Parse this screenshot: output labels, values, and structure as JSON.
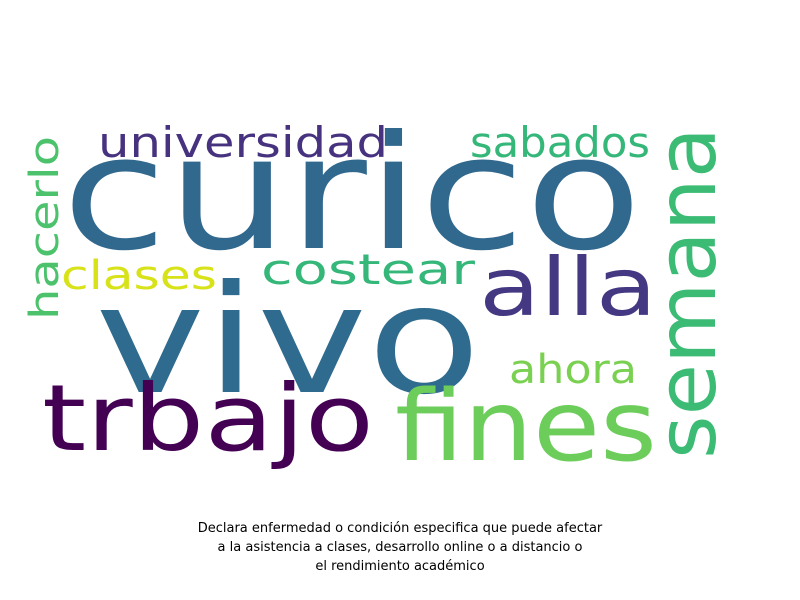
{
  "words": [
    {
      "text": "curico",
      "color": "#31688e"
    },
    {
      "text": "vivo",
      "color": "#2f6b8e"
    },
    {
      "text": "trbajo",
      "color": "#440154"
    },
    {
      "text": "fines",
      "color": "#6ccd5a"
    },
    {
      "text": "semana",
      "color": "#3cbb75"
    },
    {
      "text": "alla",
      "color": "#453882"
    },
    {
      "text": "universidad",
      "color": "#46327e"
    },
    {
      "text": "sabados",
      "color": "#35b779"
    },
    {
      "text": "costear",
      "color": "#35b779"
    },
    {
      "text": "clases",
      "color": "#d8e219"
    },
    {
      "text": "hacerlo",
      "color": "#4cc26c"
    },
    {
      "text": "ahora",
      "color": "#7ad151"
    }
  ],
  "caption": {
    "line1": "Declara enfermedad o condición especifica que puede afectar",
    "line2": "a la asistencia a clases, desarrollo online o a distancio o",
    "line3": "el rendimiento académico"
  }
}
